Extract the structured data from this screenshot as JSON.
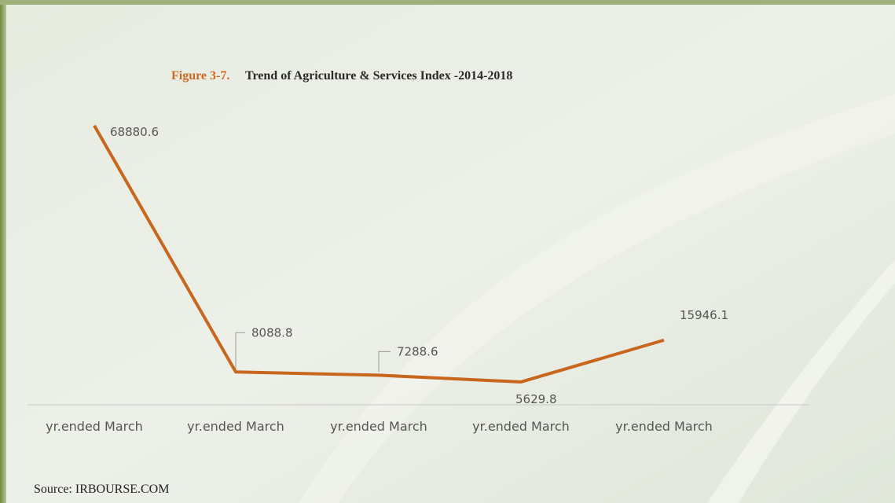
{
  "chart_data": {
    "type": "line",
    "figure_label": "Figure 3-7.",
    "title": "Trend of Agriculture & Services Index -2014-2018",
    "categories": [
      "yr.ended March",
      "yr.ended March",
      "yr.ended March",
      "yr.ended March",
      "yr.ended March"
    ],
    "series": [
      {
        "name": "Agriculture & Services Index",
        "color": "#c8661e",
        "values": [
          68880.6,
          8088.8,
          7288.6,
          5629.8,
          15946.1
        ]
      }
    ],
    "ylim": [
      0,
      70000
    ],
    "source": "Source: IRBOURSE.COM"
  }
}
